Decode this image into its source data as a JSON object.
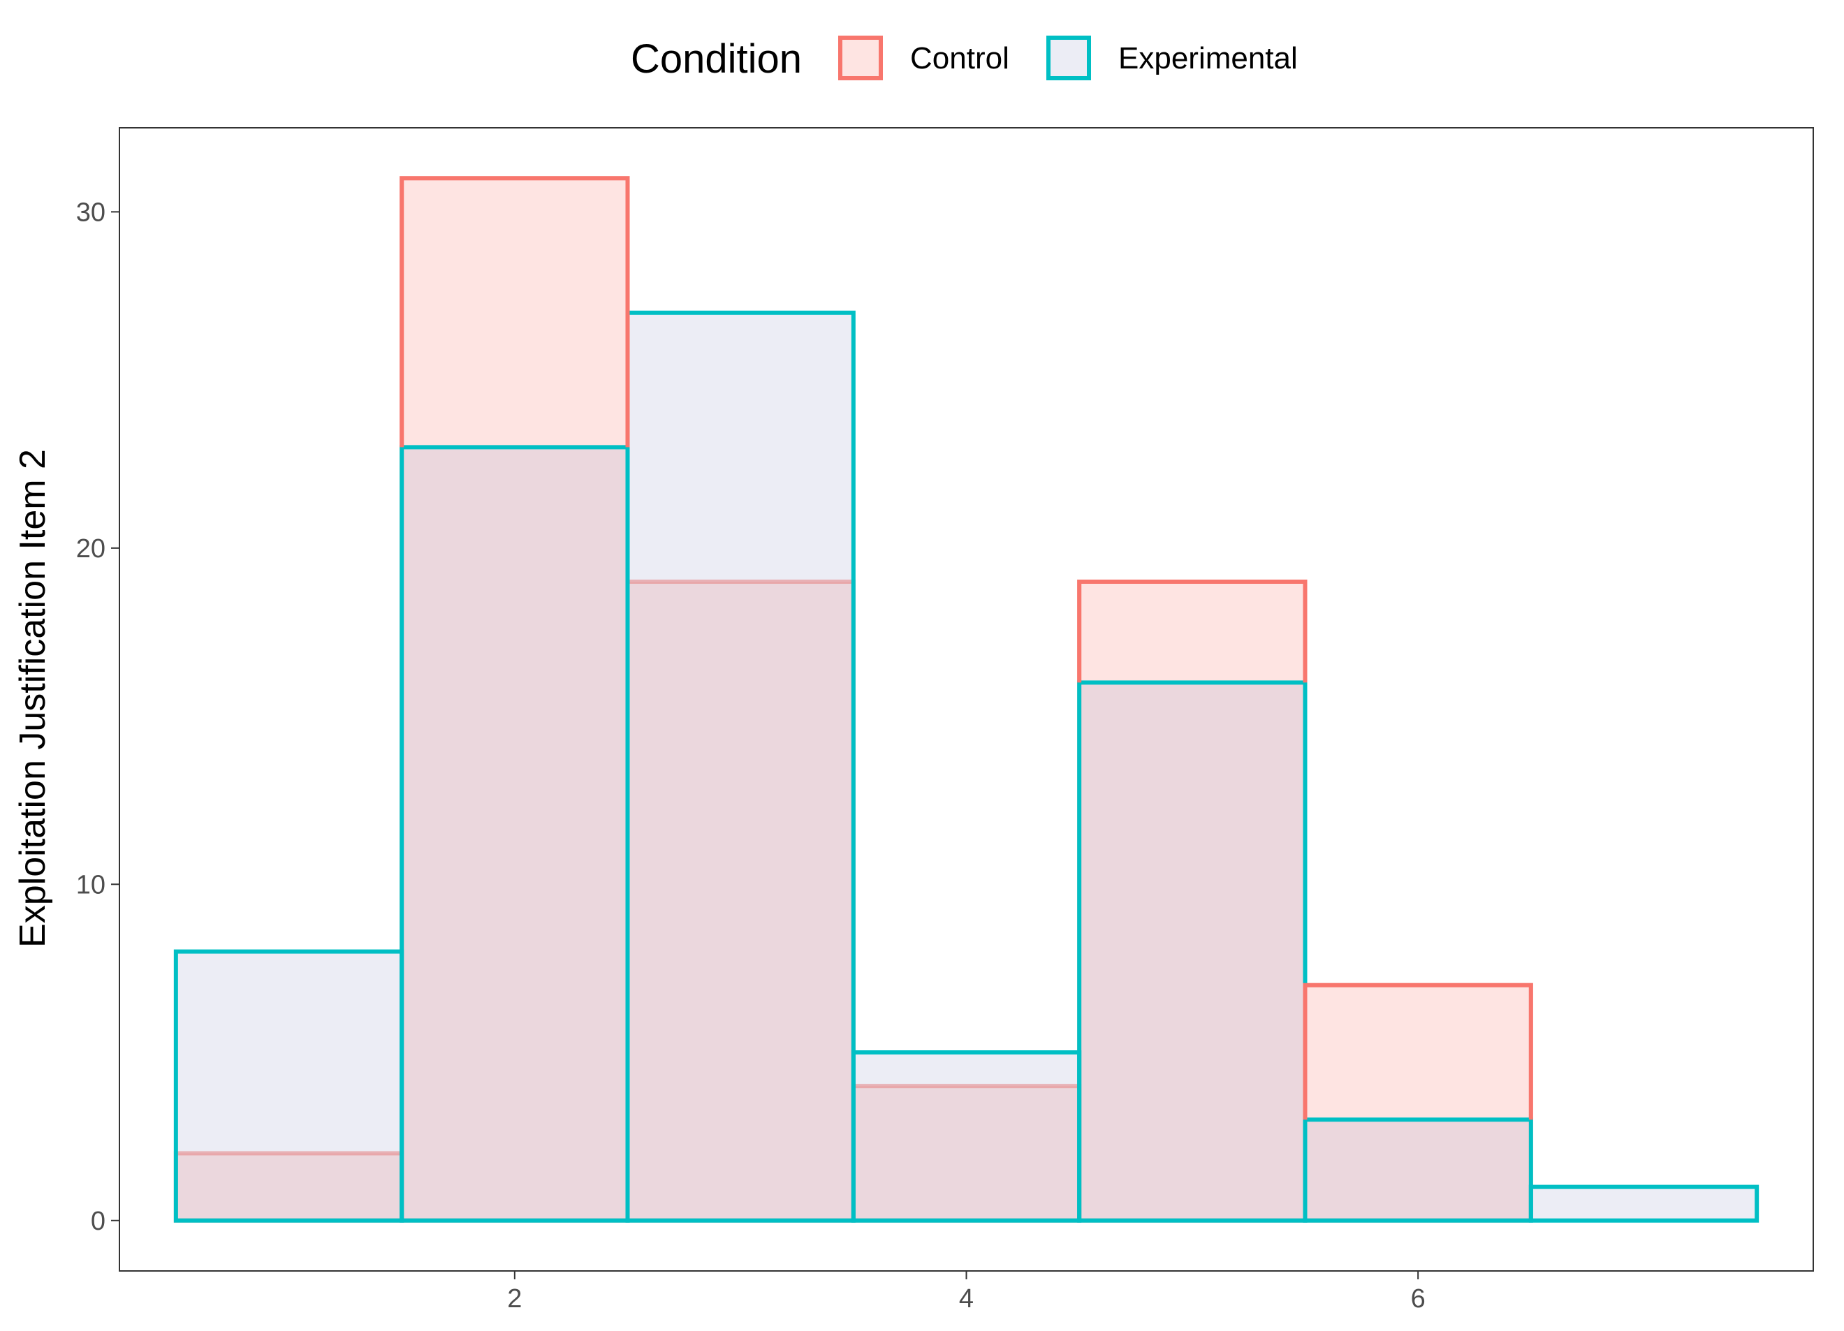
{
  "chart_data": {
    "type": "bar",
    "title": "",
    "xlabel": "",
    "ylabel": "Exploitation Justification Item 2",
    "x": [
      1,
      2,
      3,
      4,
      5,
      6,
      7
    ],
    "bin_width": 1,
    "xlim": [
      0.25,
      7.75
    ],
    "ylim": [
      -1.5,
      32.5
    ],
    "xticks": [
      2,
      4,
      6
    ],
    "yticks": [
      0,
      10,
      20,
      30
    ],
    "grid": false,
    "legend": {
      "title": "Condition",
      "position": "top"
    },
    "series": [
      {
        "name": "Control",
        "values": [
          2,
          31,
          19,
          4,
          19,
          7,
          0
        ],
        "stroke": "#F8766D",
        "fill": "#F8766D"
      },
      {
        "name": "Experimental",
        "values": [
          8,
          23,
          27,
          5,
          16,
          3,
          1
        ],
        "stroke": "#00BFC4",
        "fill": "#9EA7CC"
      }
    ]
  }
}
